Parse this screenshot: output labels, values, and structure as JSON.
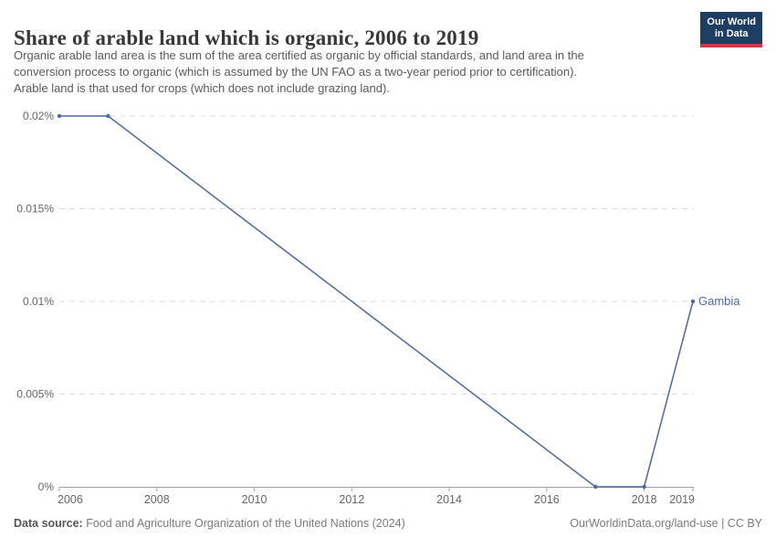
{
  "header": {
    "title": "Share of arable land which is organic, 2006 to 2019",
    "subtitle_lines": [
      "Organic arable land area is the sum of the area certified as organic by official standards, and land area in the",
      "conversion process to organic (which is assumed by the UN FAO as a two-year period prior to certification).",
      "Arable land is that used for crops (which does not include grazing land)."
    ],
    "logo": {
      "line1": "Our World",
      "line2": "in Data",
      "bg_color": "#1d3d63",
      "bar_color": "#c93b45"
    }
  },
  "chart_data": {
    "type": "line",
    "title": "Share of arable land which is organic, 2006 to 2019",
    "unit": "%",
    "xlim": [
      2006,
      2019
    ],
    "ylim": [
      0,
      0.02
    ],
    "grid": "horizontal-dashed",
    "legend_position": "end-of-line-label",
    "x_ticks": [
      {
        "v": 2006,
        "label": "2006"
      },
      {
        "v": 2008,
        "label": "2008"
      },
      {
        "v": 2010,
        "label": "2010"
      },
      {
        "v": 2012,
        "label": "2012"
      },
      {
        "v": 2014,
        "label": "2014"
      },
      {
        "v": 2016,
        "label": "2016"
      },
      {
        "v": 2018,
        "label": "2018"
      },
      {
        "v": 2019,
        "label": "2019"
      }
    ],
    "y_ticks": [
      {
        "v": 0,
        "label": "0%"
      },
      {
        "v": 0.005,
        "label": "0.005%"
      },
      {
        "v": 0.01,
        "label": "0.01%"
      },
      {
        "v": 0.015,
        "label": "0.015%"
      },
      {
        "v": 0.02,
        "label": "0.02%"
      }
    ],
    "series": [
      {
        "name": "Gambia",
        "color": "#4a69a4",
        "points": [
          {
            "x": 2006,
            "y": 0.02
          },
          {
            "x": 2007,
            "y": 0.02
          },
          {
            "x": 2017,
            "y": 0
          },
          {
            "x": 2018,
            "y": 0
          },
          {
            "x": 2019,
            "y": 0.01
          }
        ]
      }
    ]
  },
  "colors": {
    "series_blue": "#4a69a4",
    "gridline": "#dcdcdc",
    "axis": "#a1a1a1",
    "tick_text": "#666666",
    "title_text": "#383838",
    "subtitle_text": "#5a5a5a"
  },
  "footer": {
    "datasource_label": "Data source:",
    "datasource_text": "Food and Agriculture Organization of the United Nations (2024)",
    "license_text": "OurWorldinData.org/land-use | CC BY"
  }
}
